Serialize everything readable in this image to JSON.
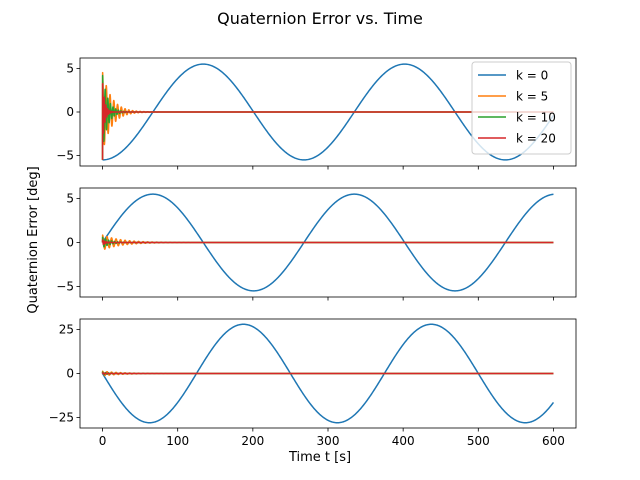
{
  "figure": {
    "title": "Quaternion Error vs. Time",
    "ylabel": "Quaternion Error [deg]",
    "xlabel": "Time t [s]"
  },
  "chart_data": {
    "type": "line",
    "title": "Quaternion Error vs. Time",
    "xlabel": "Time t [s]",
    "ylabel": "Quaternion Error [deg]",
    "sharex": true,
    "xlim": [
      -30,
      630
    ],
    "xticks": [
      0,
      100,
      200,
      300,
      400,
      500,
      600
    ],
    "grid": false,
    "legend": {
      "placement": "upper right",
      "panel": 0,
      "entries": [
        "k = 0",
        "k = 5",
        "k = 10",
        "k = 20"
      ]
    },
    "series_colors": {
      "k = 0": "#1f77b4",
      "k = 5": "#ff7f0e",
      "k = 10": "#2ca02c",
      "k = 20": "#d62728"
    },
    "panels": [
      {
        "ylim": [
          -6.2,
          6.2
        ],
        "yticks": [
          -5,
          0,
          5
        ],
        "series": [
          {
            "name": "k = 0",
            "model": "sine",
            "amplitude": 5.5,
            "period": 268,
            "phase_deg": -90,
            "x": [
              0,
              67,
              134,
              201,
              268,
              335,
              402,
              469,
              536,
              600
            ],
            "y": [
              -5.5,
              0,
              5.5,
              0,
              -5.5,
              0,
              5.5,
              0,
              -5.5,
              -3.4
            ]
          },
          {
            "name": "k = 5",
            "model": "damped",
            "start": -5.5,
            "amplitude": 4.6,
            "decay_time": 12,
            "osc_period": 5,
            "settle": 0,
            "x": [
              0,
              1,
              5,
              15,
              30,
              45,
              600
            ],
            "y": [
              -5.5,
              4.5,
              -3.7,
              1.6,
              -0.6,
              0.0,
              0.0
            ]
          },
          {
            "name": "k = 10",
            "model": "damped",
            "start": -5.5,
            "amplitude": 4.3,
            "decay_time": 7,
            "osc_period": 3.5,
            "settle": 0,
            "x": [
              0,
              1,
              5,
              15,
              30,
              600
            ],
            "y": [
              -5.5,
              4.2,
              -2.5,
              0.6,
              0.0,
              0.0
            ]
          },
          {
            "name": "k = 20",
            "model": "damped",
            "start": -5.5,
            "amplitude": 3.5,
            "decay_time": 3,
            "osc_period": 2.2,
            "settle": 0,
            "x": [
              0,
              1,
              5,
              12,
              600
            ],
            "y": [
              -5.5,
              3.5,
              -0.8,
              0.0,
              0.0
            ]
          }
        ]
      },
      {
        "ylim": [
          -6.2,
          6.2
        ],
        "yticks": [
          -5,
          0,
          5
        ],
        "series": [
          {
            "name": "k = 0",
            "model": "sine",
            "amplitude": 5.5,
            "period": 268,
            "phase_deg": 0,
            "x": [
              0,
              67,
              134,
              201,
              268,
              335,
              402,
              469,
              536,
              600
            ],
            "y": [
              0,
              5.5,
              0,
              -5.5,
              0,
              5.5,
              0,
              -5.5,
              0,
              5.5
            ]
          },
          {
            "name": "k = 5",
            "model": "damped",
            "start": 0,
            "amplitude": 0.85,
            "decay_time": 25,
            "osc_period": 6,
            "settle": 0,
            "x": [
              0,
              5,
              20,
              40,
              60,
              600
            ],
            "y": [
              0,
              0.8,
              -0.6,
              0.3,
              0.0,
              0.0
            ]
          },
          {
            "name": "k = 10",
            "model": "damped",
            "start": 0,
            "amplitude": 0.6,
            "decay_time": 10,
            "osc_period": 4,
            "settle": 0,
            "x": [
              0,
              3,
              10,
              25,
              600
            ],
            "y": [
              0,
              0.6,
              -0.3,
              0.0,
              0.0
            ]
          },
          {
            "name": "k = 20",
            "model": "damped",
            "start": 0,
            "amplitude": 0.3,
            "decay_time": 4,
            "osc_period": 2.5,
            "settle": 0,
            "x": [
              0,
              2,
              10,
              600
            ],
            "y": [
              0,
              0.3,
              0.0,
              0.0
            ]
          }
        ]
      },
      {
        "ylim": [
          -31,
          31
        ],
        "yticks": [
          -25,
          0,
          25
        ],
        "series": [
          {
            "name": "k = 0",
            "model": "sine",
            "amplitude": 28,
            "period": 250,
            "phase_deg": 180,
            "x": [
              0,
              62.5,
              125,
              187.5,
              250,
              312.5,
              375,
              437.5,
              500,
              562.5,
              600
            ],
            "y": [
              0,
              -28,
              0,
              28,
              0,
              -28,
              0,
              28,
              0,
              -28,
              -16
            ]
          },
          {
            "name": "k = 5",
            "model": "damped",
            "start": 0,
            "amplitude": 1.3,
            "decay_time": 25,
            "osc_period": 6,
            "settle": 0,
            "x": [
              0,
              5,
              20,
              40,
              60,
              600
            ],
            "y": [
              0,
              1.2,
              -0.8,
              0.4,
              0.0,
              0.0
            ]
          },
          {
            "name": "k = 10",
            "model": "damped",
            "start": 0,
            "amplitude": 0.8,
            "decay_time": 10,
            "osc_period": 4,
            "settle": 0,
            "x": [
              0,
              3,
              10,
              25,
              600
            ],
            "y": [
              0,
              0.8,
              -0.3,
              0.0,
              0.0
            ]
          },
          {
            "name": "k = 20",
            "model": "damped",
            "start": 0,
            "amplitude": 0.4,
            "decay_time": 4,
            "osc_period": 2.5,
            "settle": 0,
            "x": [
              0,
              2,
              10,
              600
            ],
            "y": [
              0,
              0.4,
              0.0,
              0.0
            ]
          }
        ]
      }
    ]
  }
}
